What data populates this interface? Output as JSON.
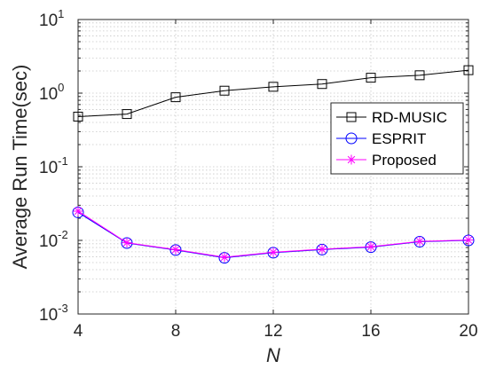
{
  "chart_data": {
    "type": "line",
    "xlabel": "N",
    "ylabel": "Average Run Time(sec)",
    "x": [
      4,
      6,
      8,
      10,
      12,
      14,
      16,
      18,
      20
    ],
    "xlim": [
      4,
      20
    ],
    "xticks": [
      4,
      8,
      12,
      16,
      20
    ],
    "yscale": "log",
    "ylim": [
      0.001,
      10
    ],
    "yticks": [
      {
        "value": 10,
        "base": "10",
        "exp": "1"
      },
      {
        "value": 1,
        "base": "10",
        "exp": "0"
      },
      {
        "value": 0.1,
        "base": "10",
        "exp": "-1"
      },
      {
        "value": 0.01,
        "base": "10",
        "exp": "-2"
      },
      {
        "value": 0.001,
        "base": "10",
        "exp": "-3"
      }
    ],
    "grid": true,
    "legend_position": "right",
    "series": [
      {
        "name": "RD-MUSIC",
        "color": "#000000",
        "marker": "square",
        "values": [
          0.48,
          0.52,
          0.88,
          1.08,
          1.22,
          1.33,
          1.62,
          1.75,
          2.05
        ]
      },
      {
        "name": "ESPRIT",
        "color": "#0000ff",
        "marker": "circle",
        "values": [
          0.024,
          0.0092,
          0.0074,
          0.0058,
          0.0068,
          0.0075,
          0.0081,
          0.0096,
          0.01
        ]
      },
      {
        "name": "Proposed",
        "color": "#ff00ff",
        "marker": "asterisk",
        "values": [
          0.025,
          0.0093,
          0.0075,
          0.0059,
          0.0069,
          0.0076,
          0.0082,
          0.0097,
          0.0101
        ]
      }
    ]
  }
}
